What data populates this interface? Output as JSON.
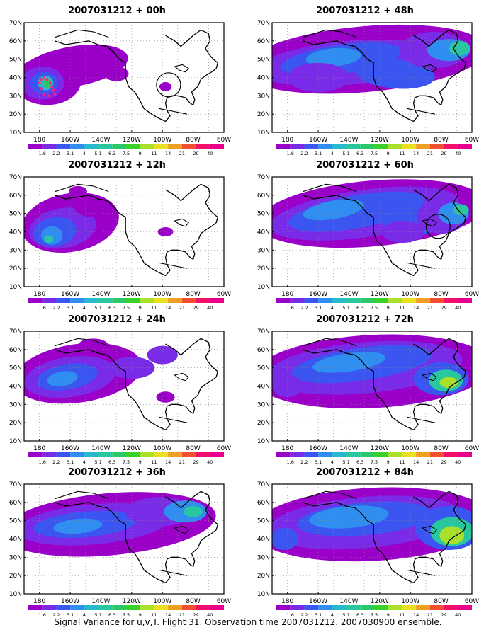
{
  "caption": "Signal Variance for u,v,T. Flight 31. Observation time 2007031212. 2007030900 ensemble.",
  "lat_labels": [
    "70N",
    "60N",
    "50N",
    "40N",
    "30N",
    "20N",
    "10N"
  ],
  "lon_labels": [
    "180",
    "160W",
    "140W",
    "120W",
    "100W",
    "80W",
    "60W"
  ],
  "scale_labels": [
    "1.6",
    "2.2",
    "3.1",
    "4",
    "5.1",
    "6.3",
    "7.5",
    "9",
    "11",
    "14",
    "21",
    "29",
    "40"
  ],
  "scale_colors": [
    "#9a00c8",
    "#7a2be8",
    "#3a55f0",
    "#2f8ef0",
    "#2ab8d0",
    "#28c7a0",
    "#2bc86a",
    "#3ad02a",
    "#a8e02a",
    "#e8e020",
    "#f0a020",
    "#f05030",
    "#f0106a",
    "#e8008c"
  ],
  "panels": [
    {
      "title": "2007031212 + 00h",
      "marker": "circle-1"
    },
    {
      "title": "2007031212 + 48h"
    },
    {
      "title": "2007031212 + 12h"
    },
    {
      "title": "2007031212 + 60h",
      "marker": "circle-2"
    },
    {
      "title": "2007031212 + 24h"
    },
    {
      "title": "2007031212 + 72h"
    },
    {
      "title": "2007031212 + 36h"
    },
    {
      "title": "2007031212 + 84h"
    }
  ]
}
